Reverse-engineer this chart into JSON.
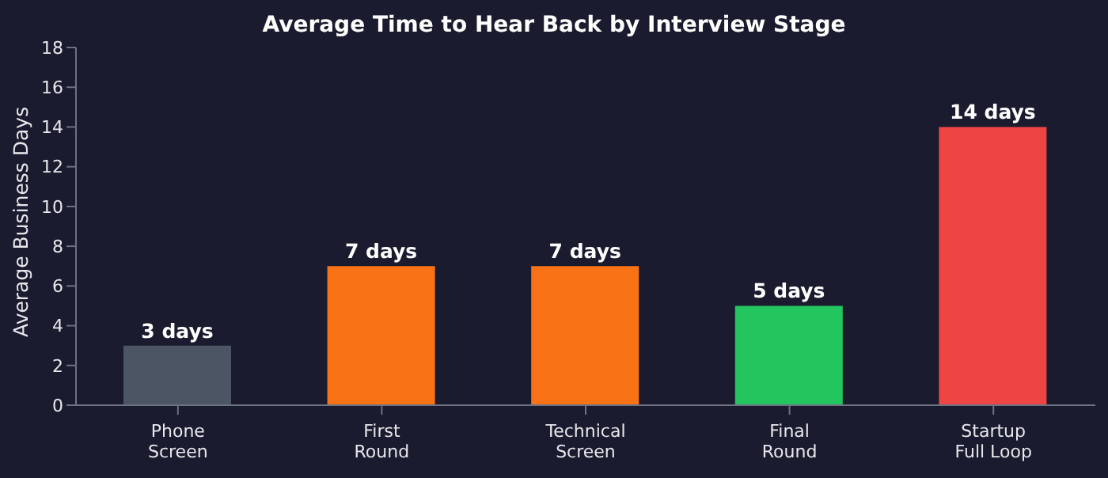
{
  "chart_data": {
    "type": "bar",
    "title": "Average Time to Hear Back by Interview Stage",
    "ylabel": "Average Business Days",
    "categories": [
      "Phone\nScreen",
      "First\nRound",
      "Technical\nScreen",
      "Final\nRound",
      "Startup\nFull Loop"
    ],
    "values": [
      3,
      7,
      7,
      5,
      14
    ],
    "colors": [
      "#4b5563",
      "#f97316",
      "#f97316",
      "#22c55e",
      "#ef4444"
    ],
    "value_labels": [
      "3 days",
      "7 days",
      "7 days",
      "5 days",
      "14 days"
    ],
    "ylim": [
      0,
      18
    ],
    "yticks": [
      0,
      2,
      4,
      6,
      8,
      10,
      12,
      14,
      16,
      18
    ],
    "grid": false,
    "legend": false
  }
}
